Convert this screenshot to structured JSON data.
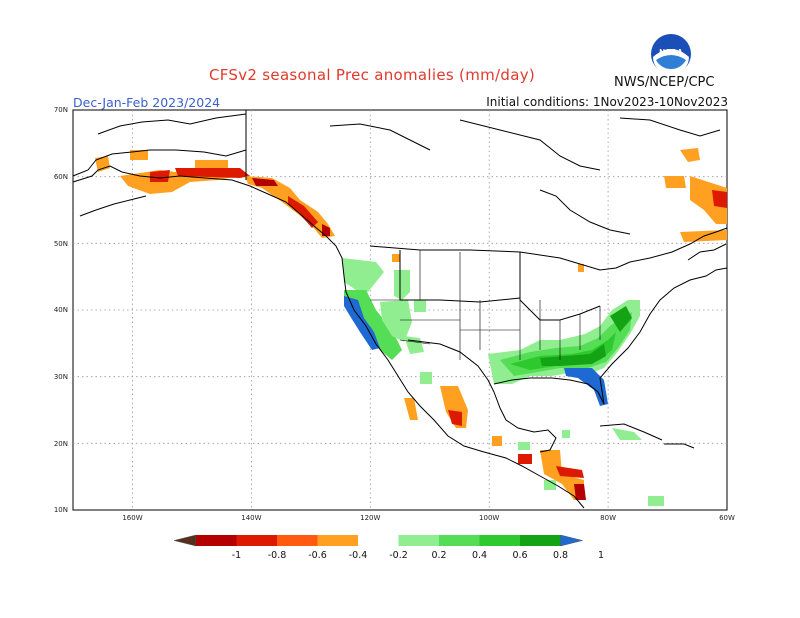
{
  "header": {
    "title": "CFSv2 seasonal Prec anomalies (mm/day)",
    "season": "Dec-Jan-Feb 2023/2024",
    "initial_conditions": "Initial conditions: 1Nov2023-10Nov2023",
    "agency": "NWS/NCEP/CPC"
  },
  "logo": {
    "text": "NOAA",
    "icon": "noaa-logo-icon"
  },
  "axes": {
    "lat_labels": [
      "70N",
      "60N",
      "50N",
      "40N",
      "30N",
      "20N",
      "10N"
    ],
    "lon_labels": [
      "160W",
      "140W",
      "120W",
      "100W",
      "80W",
      "60W"
    ]
  },
  "colorbar": {
    "labels": [
      "-1",
      "-0.8",
      "-0.6",
      "-0.4",
      "-0.2",
      "0.2",
      "0.4",
      "0.6",
      "0.8",
      "1"
    ],
    "colors": [
      "#5a2e1e",
      "#b50000",
      "#dd1a00",
      "#ff5a10",
      "#ffa020",
      "#ffffff",
      "#90ee90",
      "#55dd55",
      "#2ec92e",
      "#14a314",
      "#1e69d2"
    ]
  },
  "colors": {
    "title": "#e03a2e",
    "season": "#3a5fcd",
    "wet_light": "#90ee90",
    "wet": "#2ec92e",
    "wet_dark": "#14a314",
    "wet_max": "#1e69d2",
    "dry_light": "#ffa020",
    "dry": "#ff5a10",
    "dry_dark": "#b50000"
  }
}
